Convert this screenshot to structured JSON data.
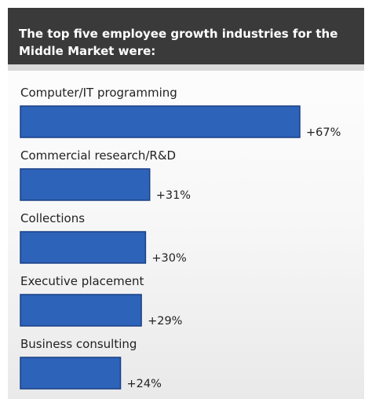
{
  "chart_data": {
    "type": "bar",
    "orientation": "horizontal",
    "title": "The top five employee growth industries for the Middle Market were:",
    "categories": [
      "Computer/IT programming",
      "Commercial research/R&D",
      "Collections",
      "Executive placement",
      "Business consulting"
    ],
    "values": [
      67,
      31,
      30,
      29,
      24
    ],
    "value_labels": [
      "+67%",
      "+31%",
      "+30%",
      "+29%",
      "+24%"
    ],
    "unit": "%",
    "grid": false,
    "legend": "none",
    "bar_color": "#2d63b8",
    "bar_border_color": "#1a3f86"
  }
}
